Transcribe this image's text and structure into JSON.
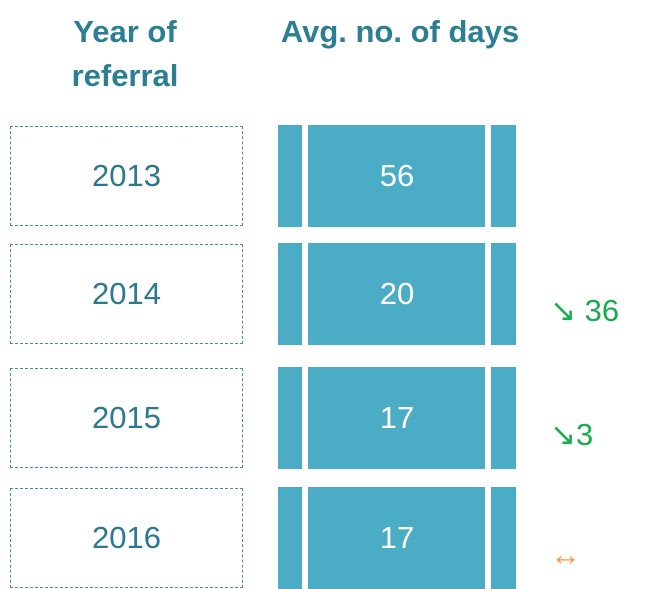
{
  "header": {
    "year": "Year of referral",
    "days": "Avg. no. of days"
  },
  "rows": [
    {
      "year": "2013",
      "days": "56",
      "change": null
    },
    {
      "year": "2014",
      "days": "20",
      "change": {
        "text": "↘ 36",
        "color": "#1aab4f"
      }
    },
    {
      "year": "2015",
      "days": "17",
      "change": {
        "text": "↘3",
        "color": "#1aab4f"
      }
    },
    {
      "year": "2016",
      "days": "17",
      "change": {
        "text": "↔",
        "color": "#f79646"
      }
    }
  ]
}
